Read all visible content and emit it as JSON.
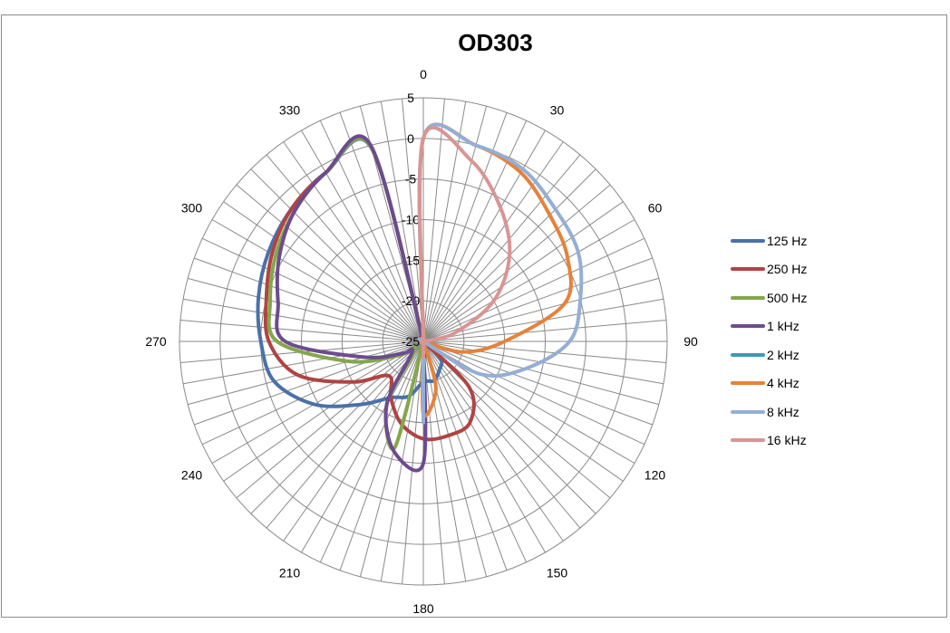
{
  "chart_data": {
    "type": "polar-line",
    "title": "OD303",
    "angle_labels": [
      "0",
      "30",
      "60",
      "90",
      "120",
      "150",
      "180",
      "210",
      "240",
      "270",
      "300",
      "330"
    ],
    "radial_ticks": [
      5,
      0,
      -5,
      -10,
      -15,
      -20,
      -25
    ],
    "rlim": [
      -25,
      5
    ],
    "angle_direction": "clockwise",
    "angle_zero": "top",
    "grid": true,
    "legend_position": "right",
    "angles": [
      0,
      15,
      30,
      45,
      60,
      75,
      90,
      105,
      120,
      135,
      150,
      165,
      180,
      195,
      210,
      225,
      240,
      255,
      270,
      285,
      300,
      315,
      330,
      345
    ],
    "series": [
      {
        "name": "125 Hz",
        "color": "#4a71a8",
        "values": [
          -25,
          -25,
          -25,
          -25,
          -25,
          -25,
          -25,
          -25,
          -25,
          -22,
          -21,
          -20,
          -20,
          -18,
          -17,
          -14,
          -9.5,
          -6,
          -5,
          -4,
          -3,
          -2,
          -1,
          -0.4
        ]
      },
      {
        "name": "250 Hz",
        "color": "#b04443",
        "values": [
          -25,
          -25,
          -25,
          -25,
          -25,
          -25,
          -25,
          -25,
          -25,
          -17,
          -13.5,
          -13,
          -13,
          -14.5,
          -17,
          -19,
          -15,
          -9,
          -6,
          -5,
          -3.5,
          -2,
          -1,
          -0.2
        ]
      },
      {
        "name": "500 Hz",
        "color": "#83a74a",
        "values": [
          -25,
          -25,
          -25,
          -25,
          -25,
          -25,
          -25,
          -25,
          -25,
          -25,
          -25,
          -25,
          -25,
          -11.5,
          -16,
          -23.5,
          -21.5,
          -15.5,
          -7,
          -5.5,
          -4,
          -2.5,
          -1,
          -0.3
        ]
      },
      {
        "name": "1 kHz",
        "color": "#6d4b8e",
        "values": [
          -25,
          -25,
          -25,
          -25,
          -25,
          -25,
          -25,
          -25,
          -25,
          -25,
          -25,
          -25,
          -10,
          -11,
          -16,
          -23,
          -22,
          -17.5,
          -8,
          -6.5,
          -4.5,
          -2.5,
          -1,
          0
        ]
      },
      {
        "name": "2 kHz",
        "color": "#3b9bb5",
        "values": []
      },
      {
        "name": "4 kHz",
        "color": "#e5823a",
        "values": [
          0,
          0,
          -1,
          -3,
          -4.5,
          -7,
          -15,
          -20,
          -25,
          -25,
          -25,
          -19,
          -16,
          -25,
          -25,
          -25,
          -25,
          -25,
          -25,
          -25,
          -25,
          -25,
          -25,
          -25
        ]
      },
      {
        "name": "8 kHz",
        "color": "#94aed6",
        "values": [
          0,
          0,
          -0.5,
          -2,
          -3,
          -5,
          -7,
          -12,
          -17,
          -25,
          -25,
          -25,
          -15,
          -25,
          -25,
          -25,
          -25,
          -25,
          -25,
          -25,
          -25,
          -25,
          -25,
          -25
        ]
      },
      {
        "name": "16 kHz",
        "color": "#d99593",
        "values": [
          0,
          -2,
          -6,
          -10,
          -15,
          -21,
          -25,
          -25,
          -25,
          -25,
          -25,
          -25,
          -25,
          -25,
          -25,
          -25,
          -25,
          -25,
          -25,
          -25,
          -25,
          -25,
          -25,
          -25
        ]
      }
    ]
  }
}
